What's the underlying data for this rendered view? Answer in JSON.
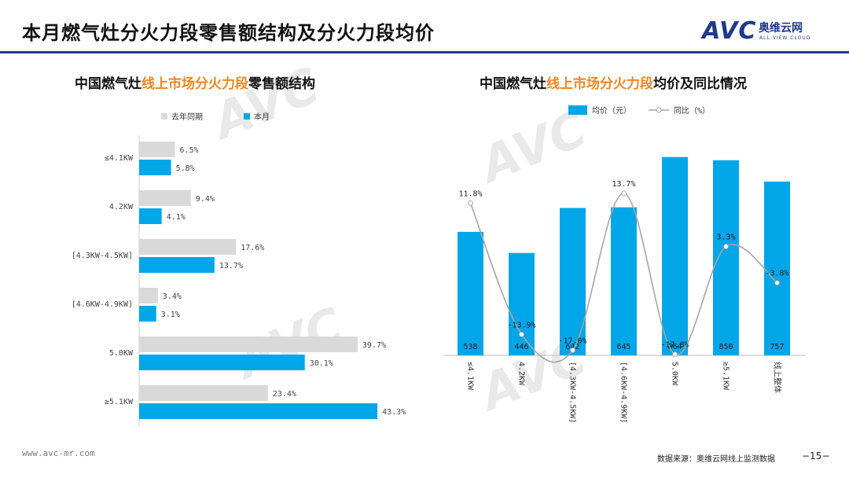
{
  "page": {
    "title": "本月燃气灶分火力段零售额结构及分火力段均价",
    "logo_text": "AVC",
    "logo_cn": "奥维云网",
    "logo_en": "ALL VIEW CLOUD",
    "footer_url": "www.avc-mr.com",
    "footer_source": "数据来源：奥维云网线上监测数据",
    "page_number": "−15−",
    "colors": {
      "accent": "#00a6e8",
      "grey": "#d9d9d9",
      "title_rule": "#1e3a8a",
      "highlight": "#f0861e"
    }
  },
  "chart_data": [
    {
      "type": "bar",
      "orientation": "horizontal",
      "title_parts": [
        "中国燃气灶",
        "线上市场分火力段",
        "零售额结构"
      ],
      "categories": [
        "≤4.1KW",
        "4.2KW",
        "[4.3KW-4.5KW]",
        "[4.6KW-4.9KW]",
        "5.0KW",
        "≥5.1KW"
      ],
      "series": [
        {
          "name": "去年同期",
          "color": "#d9d9d9",
          "values": [
            6.5,
            9.4,
            17.6,
            3.4,
            39.7,
            23.4
          ]
        },
        {
          "name": "本月",
          "color": "#00a6e8",
          "values": [
            5.8,
            4.1,
            13.7,
            3.1,
            30.1,
            43.3
          ]
        }
      ],
      "value_suffix": "%",
      "legend": "top"
    },
    {
      "type": "bar",
      "title_parts": [
        "中国燃气灶",
        "线上市场分火力段",
        "均价及同比情况"
      ],
      "categories": [
        "≤4.1KW",
        "4.2KW",
        "[4.3KW-4.5KW]",
        "[4.6KW-4.9KW]",
        "5.0KW",
        "≥5.1KW",
        "线上整体"
      ],
      "series": [
        {
          "name": "均价（元）",
          "type": "bar",
          "color": "#00a6e8",
          "values": [
            538,
            446,
            642,
            645,
            864,
            850,
            757
          ]
        },
        {
          "name": "同比（%）",
          "type": "line",
          "color": "#a6a6a6",
          "values": [
            11.8,
            -13.9,
            -17.0,
            13.7,
            -17.8,
            3.3,
            -3.8
          ]
        }
      ],
      "legend": "top"
    }
  ]
}
